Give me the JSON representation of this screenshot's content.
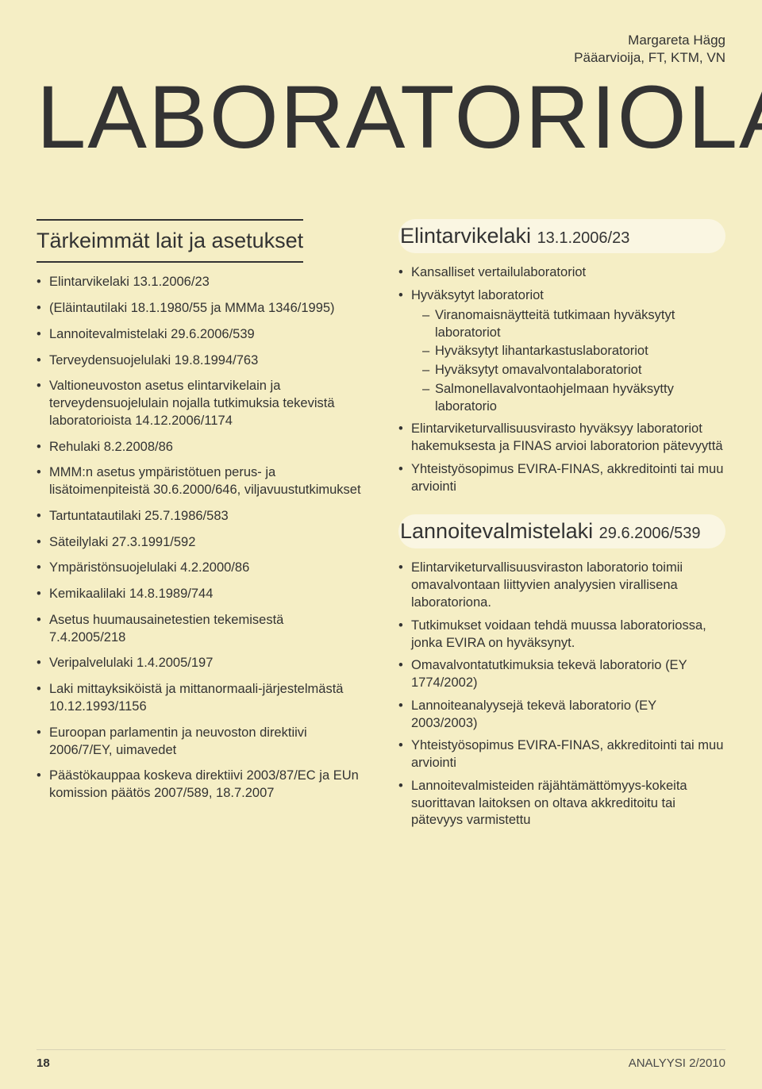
{
  "byline": {
    "name": "Margareta Hägg",
    "title": "Pääarvioija, FT, KTM, VN"
  },
  "main_title": "LABORATORIOLAIN",
  "left": {
    "heading": "Tärkeimmät lait ja asetukset",
    "items": [
      "Elintarvikelaki 13.1.2006/23",
      "(Eläintautilaki 18.1.1980/55 ja MMMa 1346/1995)",
      "Lannoitevalmistelaki 29.6.2006/539",
      "Terveydensuojelulaki 19.8.1994/763",
      "Valtioneuvoston asetus elintarvikelain ja terveydensuojelulain nojalla tutkimuksia tekevistä laboratorioista 14.12.2006/1174",
      "Rehulaki 8.2.2008/86",
      "MMM:n asetus ympäristötuen perus- ja lisätoimenpiteistä 30.6.2000/646, viljavuustutkimukset",
      "Tartuntatautilaki 25.7.1986/583",
      "Säteilylaki 27.3.1991/592",
      "Ympäristönsuojelulaki 4.2.2000/86",
      "Kemikaalilaki 14.8.1989/744",
      "Asetus huumausainetestien tekemisestä 7.4.2005/218",
      "Veripalvelulaki 1.4.2005/197",
      "Laki mittayksiköistä ja mittanormaali-järjestelmästä 10.12.1993/1156",
      "Euroopan parlamentin ja neuvoston direktiivi 2006/7/EY, uimavedet",
      "Päästökauppaa koskeva direktiivi 2003/87/EC ja EUn komission päätös 2007/589, 18.7.2007"
    ]
  },
  "right": [
    {
      "heading": "Elintarvikelaki",
      "heading_num": "13.1.2006/23",
      "items": [
        {
          "text": "Kansalliset vertailulaboratoriot"
        },
        {
          "text": "Hyväksytyt laboratoriot",
          "sub": [
            "Viranomaisnäytteitä tutkimaan hyväksytyt laboratoriot",
            "Hyväksytyt lihantarkastuslaboratoriot",
            "Hyväksytyt omavalvontalaboratoriot",
            "Salmonellavalvontaohjelmaan hyväksytty laboratorio"
          ]
        },
        {
          "text": "Elintarviketurvallisuusvirasto hyväksyy laboratoriot hakemuksesta ja FINAS arvioi laboratorion pätevyyttä"
        },
        {
          "text": "Yhteistyösopimus EVIRA-FINAS, akkreditointi tai muu arviointi"
        }
      ]
    },
    {
      "heading": "Lannoitevalmistelaki",
      "heading_num": "29.6.2006/539",
      "items": [
        {
          "text": "Elintarviketurvallisuusviraston laboratorio toimii omavalvontaan liittyvien analyysien virallisena laboratoriona."
        },
        {
          "text": "Tutkimukset voidaan tehdä muussa laboratoriossa, jonka EVIRA on hyväksynyt."
        },
        {
          "text": "Omavalvontatutkimuksia tekevä laboratorio (EY 1774/2002)"
        },
        {
          "text": "Lannoiteanalyysejä tekevä laboratorio (EY 2003/2003)"
        },
        {
          "text": "Yhteistyösopimus EVIRA-FINAS, akkreditointi tai muu arviointi"
        },
        {
          "text": "Lannoitevalmisteiden räjähtämättömyys-kokeita suorittavan laitoksen on oltava akkreditoitu tai pätevyys varmistettu"
        }
      ]
    }
  ],
  "footer": {
    "page": "18",
    "pub": "ANALYYSI 2/2010"
  },
  "colors": {
    "page_bg": "#f5eec5",
    "heading_pill_bg": "#faf6e2",
    "text": "#333333",
    "rule": "#333333"
  }
}
